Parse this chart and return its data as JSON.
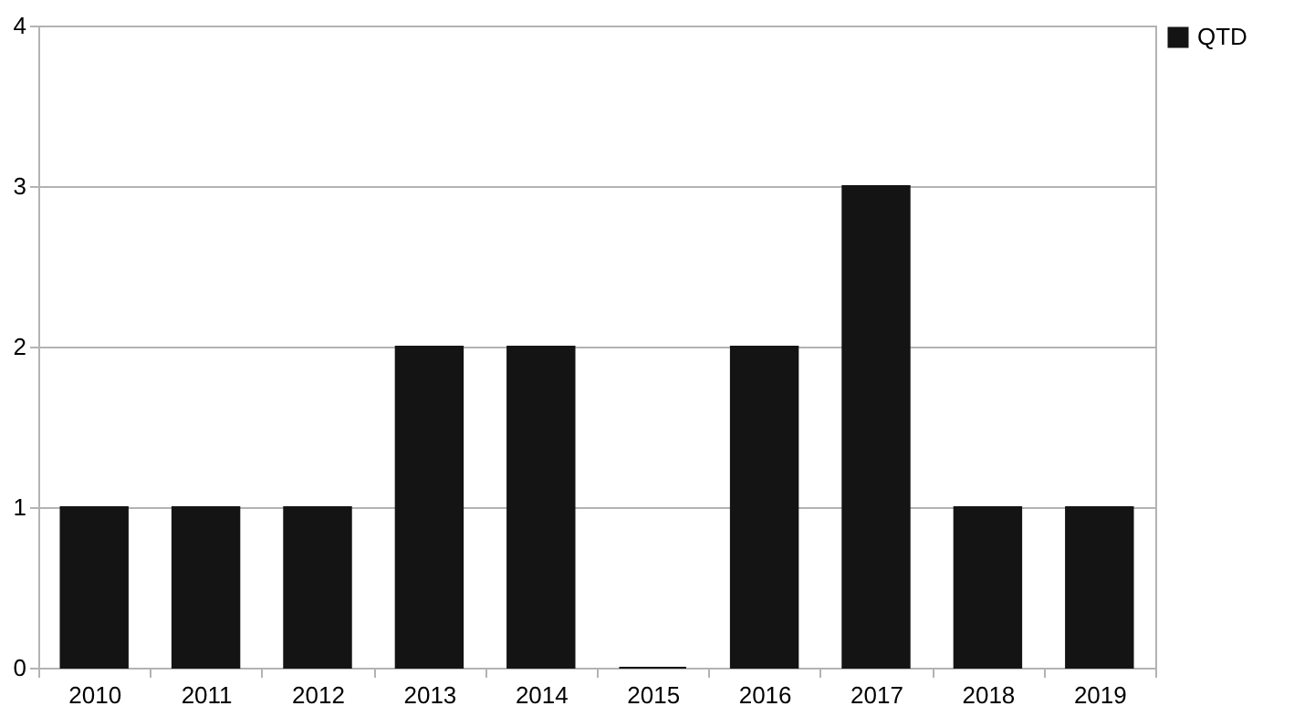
{
  "chart_data": {
    "type": "bar",
    "categories": [
      "2010",
      "2011",
      "2012",
      "2013",
      "2014",
      "2015",
      "2016",
      "2017",
      "2018",
      "2019"
    ],
    "series": [
      {
        "name": "QTD",
        "color": "#141414",
        "values": [
          1,
          1,
          1,
          2,
          2,
          0,
          2,
          3,
          1,
          1
        ]
      }
    ],
    "ylim": [
      0,
      4
    ],
    "yticks": [
      0,
      1,
      2,
      3,
      4
    ],
    "grid": "y",
    "legend": "right"
  }
}
